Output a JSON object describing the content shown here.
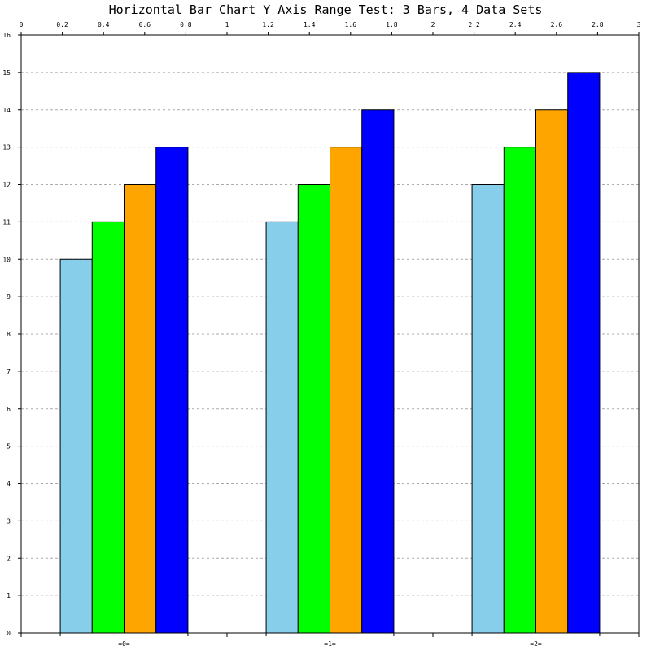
{
  "chart_data": {
    "type": "bar",
    "title": "Horizontal Bar Chart Y Axis Range Test: 3 Bars, 4 Data Sets",
    "categories": [
      "=0=",
      "=1=",
      "=2="
    ],
    "series": [
      {
        "values": [
          10,
          11,
          12
        ],
        "color": "#87ceeb"
      },
      {
        "values": [
          11,
          12,
          13
        ],
        "color": "#00ff00"
      },
      {
        "values": [
          12,
          13,
          14
        ],
        "color": "#ffa500"
      },
      {
        "values": [
          13,
          14,
          15
        ],
        "color": "#0000ff"
      }
    ],
    "ylim": [
      0,
      16
    ],
    "yticks": [
      "0",
      "1",
      "2",
      "3",
      "4",
      "5",
      "6",
      "7",
      "8",
      "9",
      "10",
      "11",
      "12",
      "13",
      "14",
      "15",
      "16"
    ],
    "top_xlim": [
      0,
      3
    ],
    "top_ticks": [
      "0",
      "0.2",
      "0.4",
      "0.6",
      "0.8",
      "1",
      "1.2",
      "1.4",
      "1.6",
      "1.8",
      "2",
      "2.2",
      "2.4",
      "2.6",
      "2.8",
      "3"
    ],
    "grid": "horizontal-dashed",
    "xlabel": "",
    "ylabel": ""
  }
}
